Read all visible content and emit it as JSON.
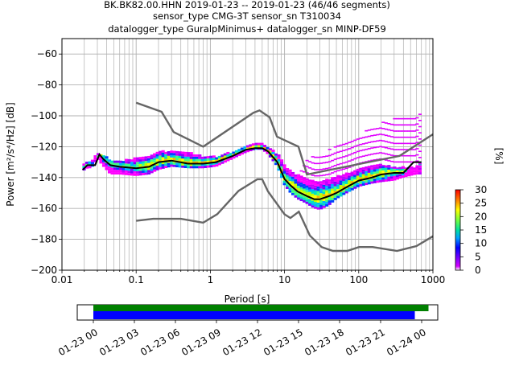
{
  "chart_data": [
    {
      "type": "heatmap",
      "title_lines": [
        "BK.BK82.00.HHN   2019-01-23 -- 2019-01-23  (46/46 segments)",
        "sensor_type CMG-3T sensor_sn T310034",
        "datalogger_type GuralpMinimus+ datalogger_sn MINP-DF59"
      ],
      "xlabel": "Period [s]",
      "ylabel": "Power [m²/s⁴/Hz] [dB]",
      "xscale": "log",
      "xlim": [
        0.01,
        1000
      ],
      "ylim": [
        -200,
        -50
      ],
      "xticks": [
        0.01,
        0.1,
        1,
        10,
        100,
        1000
      ],
      "xtick_labels": [
        "0.01",
        "0.1",
        "1",
        "10",
        "100",
        "1000"
      ],
      "yticks": [
        -200,
        -180,
        -160,
        -140,
        -120,
        -100,
        -80,
        -60
      ],
      "ytick_labels": [
        "−200",
        "−180",
        "−160",
        "−140",
        "−120",
        "−100",
        "−80",
        "−60"
      ],
      "grid": true,
      "nhnm": {
        "period": [
          0.1,
          0.22,
          0.32,
          0.8,
          3.8,
          4.6,
          6.3,
          7.9,
          15.4,
          20,
          354.8,
          1000
        ],
        "db": [
          -91.5,
          -97.4,
          -110.5,
          -120,
          -98,
          -96.5,
          -101,
          -113.5,
          -120,
          -138,
          -126,
          -112
        ]
      },
      "nlnm": {
        "period": [
          0.1,
          0.17,
          0.4,
          0.8,
          1.24,
          2.4,
          4.3,
          5,
          6,
          10,
          12,
          15.6,
          21.9,
          31.6,
          45,
          70,
          101,
          154,
          328,
          600,
          1000
        ],
        "db": [
          -168,
          -166.7,
          -166.7,
          -169.2,
          -163.7,
          -148.6,
          -141.1,
          -141.1,
          -149,
          -163.8,
          -166.2,
          -162.1,
          -177.5,
          -185,
          -187.5,
          -187.5,
          -185,
          -185,
          -187.5,
          -184.4,
          -178
        ]
      },
      "psd_band": {
        "period": [
          0.019,
          0.022,
          0.025,
          0.03,
          0.035,
          0.045,
          0.06,
          0.1,
          0.15,
          0.2,
          0.3,
          0.5,
          0.8,
          1.2,
          2,
          3,
          4,
          5,
          6,
          8,
          10,
          12,
          15,
          20,
          25,
          30,
          40,
          50,
          70,
          100,
          150,
          200,
          300,
          400,
          600,
          700
        ],
        "lower": [
          -136,
          -134,
          -134,
          -128,
          -132,
          -138,
          -138,
          -139,
          -138,
          -135,
          -133,
          -134,
          -134,
          -133,
          -128,
          -124,
          -122,
          -122,
          -125,
          -133,
          -145,
          -150,
          -154,
          -157,
          -160,
          -161,
          -158,
          -154,
          -150,
          -146,
          -144,
          -143,
          -142,
          -140,
          -138,
          -138
        ],
        "upper": [
          -132,
          -130,
          -130,
          -124,
          -126,
          -129,
          -130,
          -128,
          -127,
          -124,
          -123,
          -124,
          -127,
          -127,
          -124,
          -121,
          -119,
          -119,
          -121,
          -125,
          -132,
          -136,
          -139,
          -141,
          -143,
          -143,
          -142,
          -140,
          -138,
          -135,
          -133,
          -132,
          -134,
          -134,
          -134,
          -130
        ],
        "outlier_upper": [
          -132,
          -130,
          -130,
          -124,
          -126,
          -128,
          -129,
          -128,
          -127,
          -124,
          -123,
          -124,
          -127,
          -127,
          -124,
          -121,
          -119,
          -119,
          -121,
          -125,
          -132,
          -136,
          -138,
          -128,
          -126,
          -124,
          -122,
          -120,
          -116,
          -112,
          -108,
          -104,
          -102,
          -100,
          -99,
          -99
        ]
      },
      "psd_mode": {
        "period": [
          0.019,
          0.022,
          0.028,
          0.032,
          0.036,
          0.045,
          0.06,
          0.1,
          0.15,
          0.2,
          0.3,
          0.5,
          0.8,
          1.2,
          2,
          3,
          4,
          5,
          6,
          8,
          10,
          12,
          15,
          20,
          25,
          30,
          40,
          50,
          70,
          100,
          150,
          200,
          300,
          400,
          550,
          700
        ],
        "db": [
          -135,
          -132,
          -132,
          -125,
          -128,
          -132,
          -133,
          -134,
          -133,
          -130,
          -129,
          -131,
          -131,
          -130,
          -126,
          -122,
          -121,
          -121,
          -123,
          -130,
          -141,
          -145,
          -149,
          -152,
          -154,
          -154,
          -152,
          -150,
          -146,
          -142,
          -140,
          -138,
          -137,
          -137,
          -130,
          -130
        ]
      }
    },
    {
      "type": "colorbar",
      "label": "[%]",
      "range": [
        0,
        30
      ],
      "ticks": [
        0,
        5,
        10,
        15,
        20,
        25,
        30
      ],
      "tick_labels": [
        "0",
        "5",
        "10",
        "15",
        "20",
        "25",
        "30"
      ]
    },
    {
      "type": "timeline",
      "range": [
        "2019-01-23T00:00",
        "2019-01-24T01:00"
      ],
      "tick_labels": [
        "01-23 00",
        "01-23 03",
        "01-23 06",
        "01-23 09",
        "01-23 12",
        "01-23 15",
        "01-23 18",
        "01-23 21",
        "01-24 00"
      ],
      "tick_hours": [
        0,
        3,
        6,
        9,
        12,
        15,
        18,
        21,
        24
      ],
      "coverage_green": [
        0,
        24.5
      ],
      "coverage_blue": [
        0,
        23.5
      ],
      "colors": {
        "green": "#008000",
        "blue": "#0000ff"
      }
    }
  ]
}
